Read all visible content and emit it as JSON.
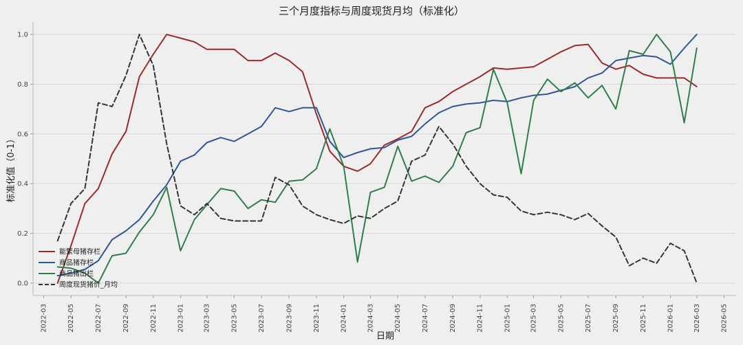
{
  "chart_data": {
    "type": "line",
    "title": "三个月度指标与周度现货月均（标准化）",
    "xlabel": "日期",
    "ylabel": "标准化值（0-1）",
    "ylim": [
      -0.05,
      1.05
    ],
    "xlim": [
      "2022-02-05",
      "2026-05-28"
    ],
    "y_ticks": [
      0.0,
      0.2,
      0.4,
      0.6,
      0.8,
      1.0
    ],
    "y_tick_labels": [
      "0.0",
      "0.2",
      "0.4",
      "0.6",
      "0.8",
      "1.0"
    ],
    "x_ticks": [
      "2022-03",
      "2022-05",
      "2022-07",
      "2022-09",
      "2022-11",
      "2023-01",
      "2023-03",
      "2023-05",
      "2023-07",
      "2023-09",
      "2023-11",
      "2024-01",
      "2024-03",
      "2024-05",
      "2024-07",
      "2024-09",
      "2024-11",
      "2025-01",
      "2025-03",
      "2025-05",
      "2025-07",
      "2025-09",
      "2025-11",
      "2026-01",
      "2026-03",
      "2026-05"
    ],
    "grid": "horizontal",
    "legend_position": "bottom-left",
    "x": [
      "2022-04",
      "2022-05",
      "2022-06",
      "2022-07",
      "2022-08",
      "2022-09",
      "2022-10",
      "2022-11",
      "2022-12",
      "2023-01",
      "2023-02",
      "2023-03",
      "2023-04",
      "2023-05",
      "2023-06",
      "2023-07",
      "2023-08",
      "2023-09",
      "2023-10",
      "2023-11",
      "2023-12",
      "2024-01",
      "2024-02",
      "2024-03",
      "2024-04",
      "2024-05",
      "2024-06",
      "2024-07",
      "2024-08",
      "2024-09",
      "2024-10",
      "2024-11",
      "2024-12",
      "2025-01",
      "2025-02",
      "2025-03",
      "2025-04",
      "2025-05",
      "2025-06",
      "2025-07",
      "2025-08",
      "2025-09",
      "2025-10",
      "2025-11",
      "2025-12",
      "2026-01",
      "2026-02",
      "2026-03"
    ],
    "series": [
      {
        "name": "能繁母猪存栏",
        "color": "#9b2a2a",
        "dash": "solid",
        "values": [
          0.0,
          0.15,
          0.32,
          0.38,
          0.52,
          0.61,
          0.83,
          0.92,
          1.0,
          0.985,
          0.97,
          0.94,
          0.94,
          0.94,
          0.895,
          0.895,
          0.925,
          0.895,
          0.85,
          0.68,
          0.53,
          0.47,
          0.45,
          0.48,
          0.555,
          0.58,
          0.61,
          0.705,
          0.73,
          0.77,
          0.8,
          0.83,
          0.865,
          0.86,
          0.865,
          0.87,
          0.9,
          0.93,
          0.955,
          0.96,
          0.885,
          0.86,
          0.875,
          0.84,
          0.825,
          0.825,
          0.825,
          0.79
        ]
      },
      {
        "name": "商品猪存栏",
        "color": "#2f5597",
        "dash": "solid",
        "values": [
          0.03,
          0.04,
          0.055,
          0.09,
          0.175,
          0.21,
          0.255,
          0.33,
          0.395,
          0.49,
          0.515,
          0.565,
          0.585,
          0.57,
          0.6,
          0.63,
          0.705,
          0.69,
          0.705,
          0.705,
          0.57,
          0.505,
          0.525,
          0.54,
          0.545,
          0.575,
          0.59,
          0.64,
          0.685,
          0.71,
          0.72,
          0.725,
          0.735,
          0.73,
          0.745,
          0.755,
          0.76,
          0.775,
          0.79,
          0.825,
          0.845,
          0.895,
          0.905,
          0.915,
          0.91,
          0.88,
          0.945,
          1.0
        ]
      },
      {
        "name": "商品猪出栏",
        "color": "#2e7d4a",
        "dash": "solid",
        "values": [
          0.065,
          0.06,
          0.04,
          0.0,
          0.11,
          0.12,
          0.205,
          0.275,
          0.385,
          0.13,
          0.255,
          0.315,
          0.38,
          0.37,
          0.3,
          0.335,
          0.325,
          0.41,
          0.415,
          0.46,
          0.62,
          0.47,
          0.085,
          0.365,
          0.385,
          0.55,
          0.41,
          0.43,
          0.405,
          0.47,
          0.605,
          0.625,
          0.86,
          0.725,
          0.44,
          0.735,
          0.82,
          0.77,
          0.805,
          0.745,
          0.795,
          0.7,
          0.935,
          0.92,
          1.0,
          0.93,
          0.645,
          0.945
        ]
      },
      {
        "name": "周度现货猪价_月均",
        "color": "#333333",
        "dash": "dashed",
        "values": [
          0.17,
          0.32,
          0.38,
          0.725,
          0.71,
          0.835,
          1.0,
          0.875,
          0.56,
          0.31,
          0.275,
          0.32,
          0.26,
          0.25,
          0.25,
          0.25,
          0.425,
          0.395,
          0.31,
          0.275,
          0.255,
          0.24,
          0.27,
          0.26,
          0.3,
          0.33,
          0.49,
          0.515,
          0.63,
          0.56,
          0.47,
          0.4,
          0.355,
          0.345,
          0.29,
          0.275,
          0.285,
          0.275,
          0.255,
          0.28,
          0.23,
          0.185,
          0.07,
          0.1,
          0.08,
          0.16,
          0.13,
          0.0
        ]
      }
    ]
  }
}
